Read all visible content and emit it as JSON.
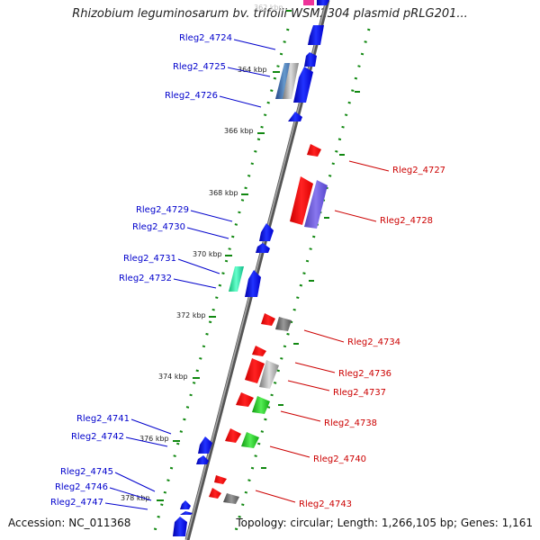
{
  "header": {
    "title": "Rhizobium leguminosarum bv. trifolii WSM2304 plasmid pRLG201..."
  },
  "footer": {
    "accession": "Accession: NC_011368",
    "summary": "Topology: circular; Length: 1,266,105 bp; Genes: 1,161"
  },
  "scale": {
    "ticks": [
      "362 kbp",
      "364 kbp",
      "366 kbp",
      "368 kbp",
      "370 kbp",
      "372 kbp",
      "374 kbp",
      "376 kbp",
      "378 kbp"
    ]
  },
  "genes": {
    "left": [
      {
        "label": "Rleg2_4724",
        "color": "#0000cc"
      },
      {
        "label": "Rleg2_4725",
        "color": "#0000cc"
      },
      {
        "label": "Rleg2_4726",
        "color": "#0000cc"
      },
      {
        "label": "Rleg2_4729",
        "color": "#0000cc"
      },
      {
        "label": "Rleg2_4730",
        "color": "#0000cc"
      },
      {
        "label": "Rleg2_4731",
        "color": "#0000cc"
      },
      {
        "label": "Rleg2_4732",
        "color": "#0000cc"
      },
      {
        "label": "Rleg2_4741",
        "color": "#0000cc"
      },
      {
        "label": "Rleg2_4742",
        "color": "#0000cc"
      },
      {
        "label": "Rleg2_4745",
        "color": "#0000cc"
      },
      {
        "label": "Rleg2_4746",
        "color": "#0000cc"
      },
      {
        "label": "Rleg2_4747",
        "color": "#0000cc"
      }
    ],
    "right": [
      {
        "label": "Rleg2_4727",
        "color": "#cc0000"
      },
      {
        "label": "Rleg2_4728",
        "color": "#cc0000"
      },
      {
        "label": "Rleg2_4734",
        "color": "#cc0000"
      },
      {
        "label": "Rleg2_4736",
        "color": "#cc0000"
      },
      {
        "label": "Rleg2_4737",
        "color": "#cc0000"
      },
      {
        "label": "Rleg2_4738",
        "color": "#cc0000"
      },
      {
        "label": "Rleg2_4740",
        "color": "#cc0000"
      },
      {
        "label": "Rleg2_4743",
        "color": "#cc0000"
      }
    ]
  }
}
